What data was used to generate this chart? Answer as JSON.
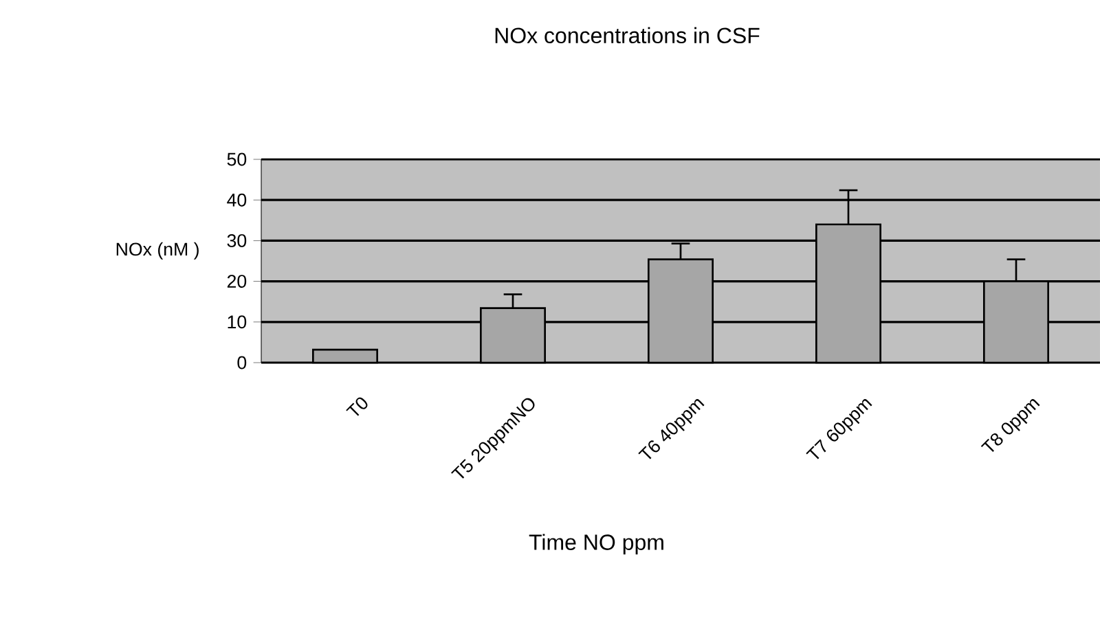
{
  "chart_data": {
    "type": "bar",
    "title": "NOx concentrations in CSF",
    "xlabel": "Time NO ppm",
    "ylabel": "NOx (nM )",
    "categories": [
      "T0",
      "T5 20ppmNO",
      "T6 40ppm",
      "T7 60ppm",
      "T8 0ppm"
    ],
    "values": [
      3.2,
      13.4,
      25.4,
      34,
      20
    ],
    "errors": [
      null,
      [
        13.4,
        16.8
      ],
      [
        25.4,
        29.3
      ],
      [
        34,
        42.4
      ],
      [
        20,
        25.4
      ]
    ],
    "color": "#a6a6a6",
    "ylim": [
      0,
      50
    ],
    "yticks": [
      0,
      10,
      20,
      30,
      40,
      50
    ],
    "grid": "y"
  }
}
